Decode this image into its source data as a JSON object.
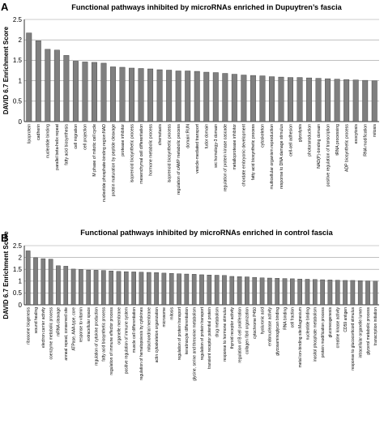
{
  "chart_data": [
    {
      "panel_letter": "A",
      "type": "bar",
      "title": "Functional pathways inhibited by microRNAs enriched in Dupuytren’s fascia",
      "xlabel": "",
      "ylabel": "DAVID 6.7 Enrichment Score",
      "ylim": [
        0,
        2.5
      ],
      "yticks": [
        "0",
        "0.5",
        "1",
        "1.5",
        "2",
        "2.5"
      ],
      "grid": true,
      "bar_color": "#7f7f7f",
      "categories": [
        "lipoprotein",
        "cadherin",
        "nucleotide binding",
        "parallel beta-helix repeat",
        "fatty acid biosynthesis",
        "cell migration",
        "cell projection",
        "M phase of mitotic cell cycle",
        "nucleotide phosphate-binding region:NAD",
        "protein maturation by peptide cleavage",
        "protease inhibitor",
        "isoprenoid biosynthetic process",
        "mesenchymal cell differentiation",
        "hormone metabolic process",
        "chemotaxis",
        "isoprenoid biosynthetic process",
        "regulation of cAMP metabolic process",
        "domain:RUN",
        "vesicle-mediated transport",
        "tudor domain",
        "src homology-3 domain",
        "regulation of protein kinase cascade",
        "metalloprotease inhibitor",
        "chordate embryonic development",
        "fatty acid biosynthetic process",
        "cytoskeleton",
        "multicellular organism reproduction",
        "response to DNA damage stimulus",
        "cell-cell adhesion",
        "glycolysis",
        "photoransduction",
        "NAD(P)-binding domain",
        "positive regulation of transcription",
        "tRNA processing",
        "ADP biosynthetic process",
        "exocytosis",
        "RNA modification",
        "mitosis"
      ],
      "values": [
        2.17,
        1.98,
        1.77,
        1.75,
        1.62,
        1.48,
        1.46,
        1.45,
        1.43,
        1.34,
        1.33,
        1.31,
        1.3,
        1.29,
        1.27,
        1.26,
        1.24,
        1.24,
        1.23,
        1.21,
        1.2,
        1.18,
        1.16,
        1.14,
        1.13,
        1.12,
        1.1,
        1.09,
        1.08,
        1.08,
        1.07,
        1.06,
        1.05,
        1.04,
        1.03,
        1.02,
        1.01,
        1.0
      ]
    },
    {
      "panel_letter": "B",
      "type": "bar",
      "title": "Functional pathways inhibited by microRNAs enriched in control fascia",
      "xlabel": "",
      "ylabel": "DAVID 6.7 Enrichment Score",
      "ylim": [
        0,
        2.5
      ],
      "yticks": [
        "0",
        "0.5",
        "1",
        "1.5",
        "2",
        "2.5"
      ],
      "grid": true,
      "bar_color": "#7f7f7f",
      "categories": [
        "ribosome biogenesis",
        "wound healing",
        "electron carrier activity",
        "coenzyme metabolic process",
        "mRNA cleavage",
        "anneal repeat, conserved site",
        "ATPase, AAA-type, core",
        "response to vitamin",
        "extracellular space",
        "regulation of cytokine production",
        "fatty acid biosynthetic process",
        "regulation of immune effector process",
        "organelle membrane",
        "positive regulation of immune system",
        "muscle cell differentiation",
        "regulation of hematopoiesis by cytokines",
        "mitochondrial membrane",
        "actin cytoskeleton organization",
        "microsome",
        "mitosis",
        "regulation of protein transport",
        "keratinocyte differentiation",
        "glycine, serine and threonine metabolism",
        "regulation of protein transport",
        "transient receptor potential protein",
        "drug metabolism",
        "response to hormone stimulus",
        "thyroid receptor activity",
        "regulation of B cell proliferation",
        "collagen fibril organization",
        "cytochrome P450",
        "hyaluronic acid",
        "endonuclease activity",
        "glycosaminoglycan binding",
        "RNA binding",
        "cell fraction",
        "metal ion-binding site:Magnesium",
        "nucleotide binding",
        "inositol phosphate metabolism",
        "protein modification process",
        "gluconeogenesis",
        "creatine kinase activity",
        "CD59 antigen",
        "response to glucocorticoid stimulus",
        "intracellular organelle lumen",
        "glycerol metabolic process",
        "transcription initiation"
      ],
      "values": [
        2.28,
        1.99,
        1.95,
        1.93,
        1.65,
        1.63,
        1.51,
        1.49,
        1.47,
        1.46,
        1.45,
        1.43,
        1.41,
        1.4,
        1.39,
        1.38,
        1.37,
        1.36,
        1.34,
        1.33,
        1.31,
        1.3,
        1.29,
        1.27,
        1.26,
        1.25,
        1.24,
        1.2,
        1.19,
        1.18,
        1.16,
        1.14,
        1.13,
        1.12,
        1.11,
        1.1,
        1.09,
        1.08,
        1.07,
        1.06,
        1.05,
        1.04,
        1.03,
        1.03,
        1.02,
        1.01,
        1.0
      ]
    }
  ]
}
